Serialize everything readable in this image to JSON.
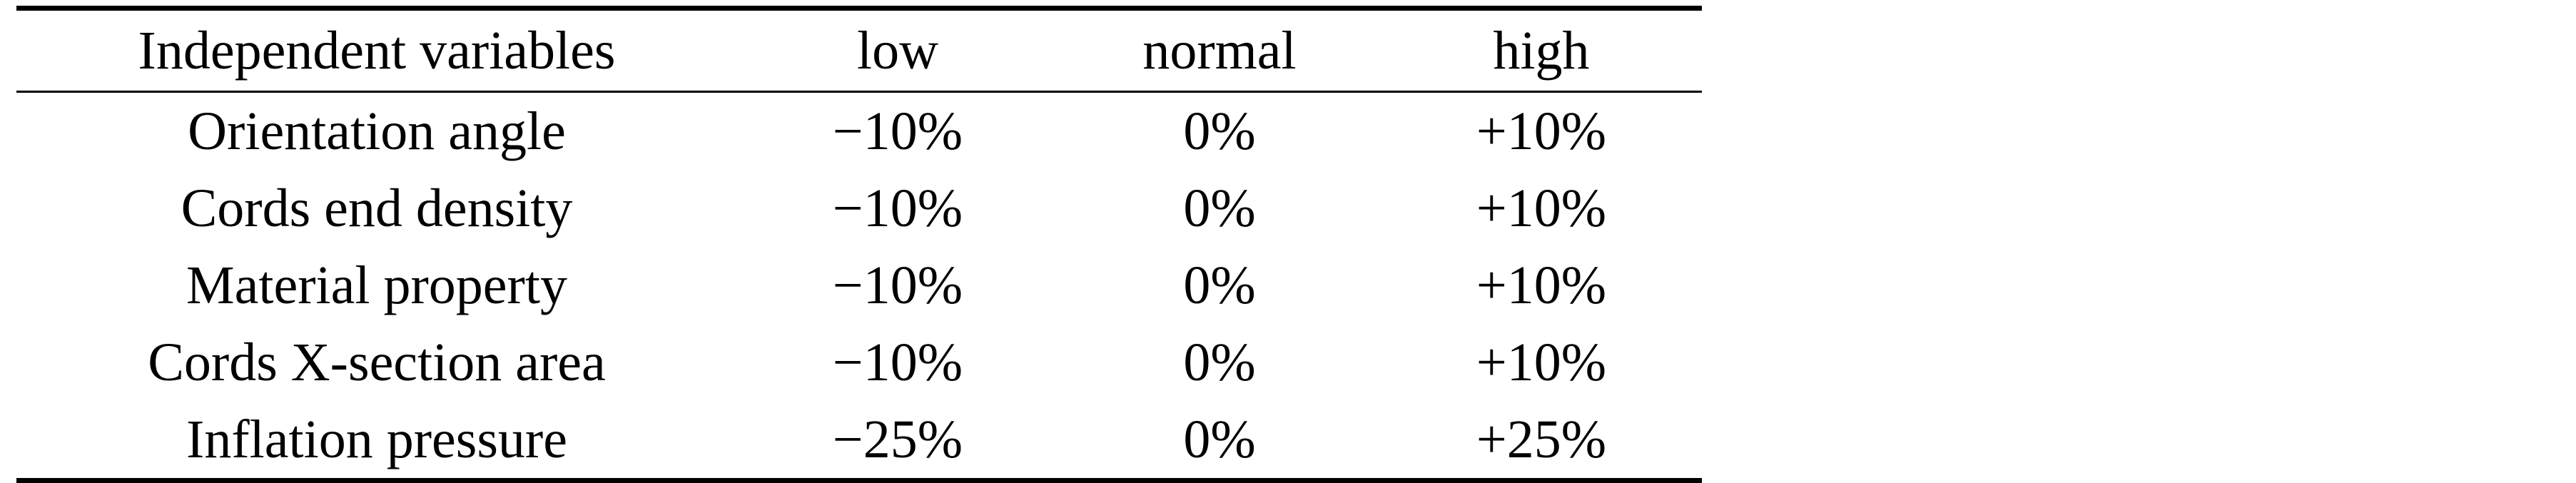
{
  "table": {
    "headers": [
      "Independent variables",
      "low",
      "normal",
      "high"
    ],
    "rows": [
      [
        "Orientation angle",
        "−10%",
        "0%",
        "+10%"
      ],
      [
        "Cords end density",
        "−10%",
        "0%",
        "+10%"
      ],
      [
        "Material property",
        "−10%",
        "0%",
        "+10%"
      ],
      [
        "Cords X-section area",
        "−10%",
        "0%",
        "+10%"
      ],
      [
        "Inflation pressure",
        "−25%",
        "0%",
        "+25%"
      ]
    ]
  }
}
